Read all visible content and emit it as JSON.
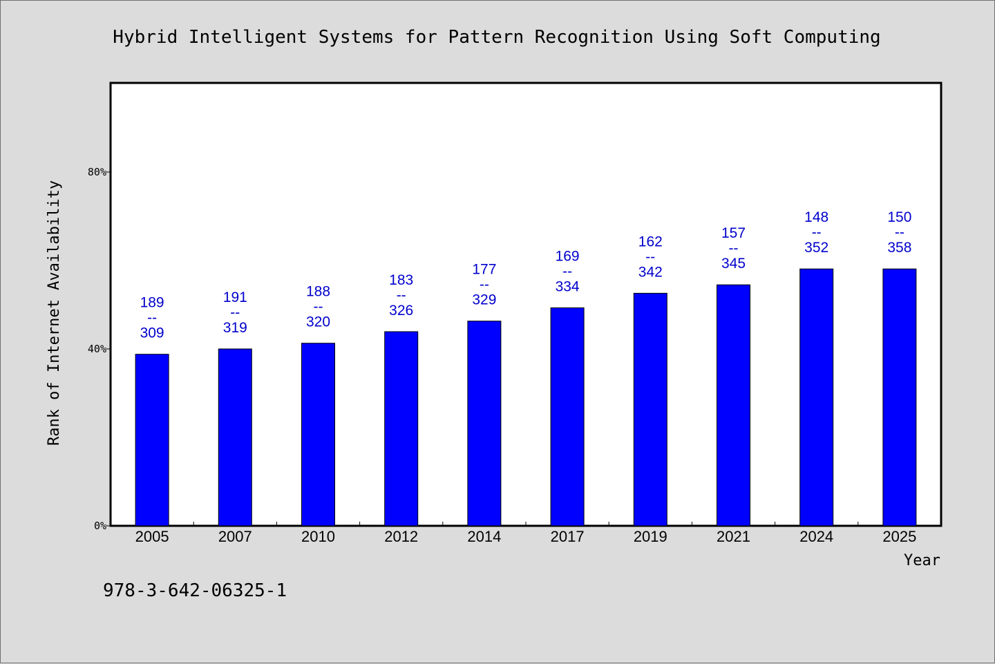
{
  "chart_data": {
    "type": "bar",
    "title": "Hybrid Intelligent Systems for Pattern Recognition Using Soft Computing",
    "xlabel": "Year",
    "ylabel": "Rank of Internet Availability",
    "categories": [
      "2005",
      "2007",
      "2010",
      "2012",
      "2014",
      "2017",
      "2019",
      "2021",
      "2024",
      "2025"
    ],
    "values": [
      38.8,
      40.0,
      41.3,
      43.9,
      46.3,
      49.3,
      52.6,
      54.5,
      58.1,
      58.1
    ],
    "value_unit": "%",
    "ylim": [
      0,
      100
    ],
    "yticks": [
      0,
      40,
      80
    ],
    "ytick_labels": [
      "0%",
      "40%",
      "80%"
    ],
    "data_labels": [
      {
        "top": "189",
        "sep": "--",
        "bottom": "309"
      },
      {
        "top": "191",
        "sep": "--",
        "bottom": "319"
      },
      {
        "top": "188",
        "sep": "--",
        "bottom": "320"
      },
      {
        "top": "183",
        "sep": "--",
        "bottom": "326"
      },
      {
        "top": "177",
        "sep": "--",
        "bottom": "329"
      },
      {
        "top": "169",
        "sep": "--",
        "bottom": "334"
      },
      {
        "top": "162",
        "sep": "--",
        "bottom": "342"
      },
      {
        "top": "157",
        "sep": "--",
        "bottom": "345"
      },
      {
        "top": "148",
        "sep": "--",
        "bottom": "352"
      },
      {
        "top": "150",
        "sep": "--",
        "bottom": "358"
      }
    ],
    "grid": false,
    "legend": "none",
    "colors": {
      "bar": "#0000ff",
      "data_label": "#0000cc",
      "plot_background": "#ffffff",
      "page_background": "#dcdcdc"
    }
  },
  "footer": {
    "isbn": "978-3-642-06325-1"
  }
}
